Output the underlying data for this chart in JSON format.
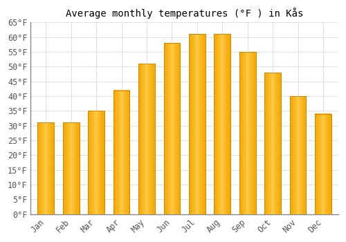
{
  "title": "Average monthly temperatures (°F ) in Kås",
  "months": [
    "Jan",
    "Feb",
    "Mar",
    "Apr",
    "May",
    "Jun",
    "Jul",
    "Aug",
    "Sep",
    "Oct",
    "Nov",
    "Dec"
  ],
  "values": [
    31,
    31,
    35,
    42,
    51,
    58,
    61,
    61,
    55,
    48,
    40,
    34
  ],
  "bar_color_light": "#FFD055",
  "bar_color_dark": "#F5A800",
  "bar_edge_color": "#CC8800",
  "ylim": [
    0,
    65
  ],
  "ytick_step": 5,
  "background_color": "#ffffff",
  "grid_color": "#e0e0e0",
  "title_fontsize": 10,
  "tick_fontsize": 8.5,
  "bar_width": 0.65
}
